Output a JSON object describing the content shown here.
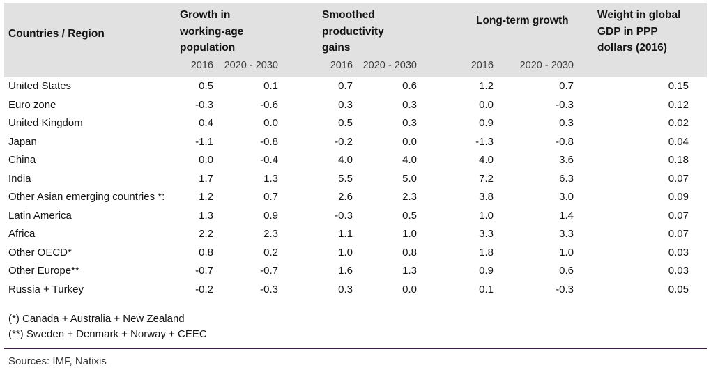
{
  "table": {
    "region_header": "Countries / Region",
    "col_groups": [
      {
        "title": "Growth in working-age population",
        "sub": [
          "2016",
          "2020 - 2030"
        ]
      },
      {
        "title": "Smoothed productivity gains",
        "sub": [
          "2016",
          "2020 - 2030"
        ]
      },
      {
        "title": "Long-term growth",
        "sub": [
          "2016",
          "2020 - 2030"
        ]
      },
      {
        "title": "Weight in global GDP in PPP dollars (2016)"
      }
    ],
    "rows": [
      {
        "region": "United States",
        "values": [
          "0.5",
          "0.1",
          "0.7",
          "0.6",
          "1.2",
          "0.7",
          "0.15"
        ]
      },
      {
        "region": "Euro zone",
        "values": [
          "-0.3",
          "-0.6",
          "0.3",
          "0.3",
          "0.0",
          "-0.3",
          "0.12"
        ]
      },
      {
        "region": "United Kingdom",
        "values": [
          "0.4",
          "0.0",
          "0.5",
          "0.3",
          "0.9",
          "0.3",
          "0.02"
        ]
      },
      {
        "region": "Japan",
        "values": [
          "-1.1",
          "-0.8",
          "-0.2",
          "0.0",
          "-1.3",
          "-0.8",
          "0.04"
        ]
      },
      {
        "region": "China",
        "values": [
          "0.0",
          "-0.4",
          "4.0",
          "4.0",
          "4.0",
          "3.6",
          "0.18"
        ]
      },
      {
        "region": "India",
        "values": [
          "1.7",
          "1.3",
          "5.5",
          "5.0",
          "7.2",
          "6.3",
          "0.07"
        ]
      },
      {
        "region": "Other Asian emerging countries *:",
        "values": [
          "1.2",
          "0.7",
          "2.6",
          "2.3",
          "3.8",
          "3.0",
          "0.09"
        ]
      },
      {
        "region": "Latin America",
        "values": [
          "1.3",
          "0.9",
          "-0.3",
          "0.5",
          "1.0",
          "1.4",
          "0.07"
        ]
      },
      {
        "region": "Africa",
        "values": [
          "2.2",
          "2.3",
          "1.1",
          "1.0",
          "3.3",
          "3.3",
          "0.07"
        ]
      },
      {
        "region": "Other OECD*",
        "values": [
          "0.8",
          "0.2",
          "1.0",
          "0.8",
          "1.8",
          "1.0",
          "0.03"
        ]
      },
      {
        "region": "Other Europe**",
        "values": [
          "-0.7",
          "-0.7",
          "1.6",
          "1.3",
          "0.9",
          "0.6",
          "0.03"
        ]
      },
      {
        "region": "Russia + Turkey",
        "values": [
          "-0.2",
          "-0.3",
          "0.3",
          "0.0",
          "0.1",
          "-0.3",
          "0.05"
        ]
      }
    ]
  },
  "footnotes": [
    "(*) Canada + Australia + New Zealand",
    "(**) Sweden + Denmark + Norway + CEEC"
  ],
  "sources": "Sources: IMF, Natixis",
  "colors": {
    "header_bg": "#e1e1e1",
    "divider": "#3a2144",
    "body_text": "#141414"
  }
}
